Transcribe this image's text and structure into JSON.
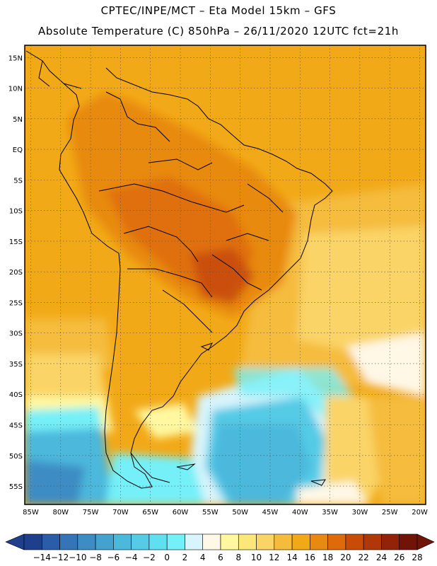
{
  "header": {
    "line1": "CPTEC/INPE/MCT –  Eta Model 15km – GFS",
    "line2": "Absolute Temperature (C) 850hPa – 26/11/2020 12UTC fct=21h"
  },
  "axes": {
    "lat_labels": [
      "15N",
      "10N",
      "5N",
      "EQ",
      "5S",
      "10S",
      "15S",
      "20S",
      "25S",
      "30S",
      "35S",
      "40S",
      "45S",
      "50S",
      "55S"
    ],
    "lat_values": [
      15,
      10,
      5,
      0,
      -5,
      -10,
      -15,
      -20,
      -25,
      -30,
      -35,
      -40,
      -45,
      -50,
      -55
    ],
    "lon_labels": [
      "85W",
      "80W",
      "75W",
      "70W",
      "65W",
      "60W",
      "55W",
      "50W",
      "45W",
      "40W",
      "35W",
      "30W",
      "25W",
      "20W"
    ],
    "lon_values": [
      -85,
      -80,
      -75,
      -70,
      -65,
      -60,
      -55,
      -50,
      -45,
      -40,
      -35,
      -30,
      -25,
      -20
    ],
    "lon_range": [
      -86,
      -19
    ],
    "lat_range": [
      -58,
      17
    ],
    "grid": true
  },
  "colorbar": {
    "labels": [
      "−14",
      "−12",
      "−10",
      "−8",
      "−6",
      "−4",
      "−2",
      "0",
      "2",
      "4",
      "6",
      "8",
      "10",
      "12",
      "14",
      "16",
      "18",
      "20",
      "22",
      "24",
      "26",
      "28"
    ],
    "colors": [
      "#1d3f8c",
      "#2a5ca8",
      "#3574b6",
      "#3e8cc4",
      "#45a2cf",
      "#4cb8dc",
      "#55cbe6",
      "#5ee0f0",
      "#74f0f8",
      "#d8f4fc",
      "#fff8e6",
      "#fff8a0",
      "#fde67a",
      "#fad466",
      "#f5bc3c",
      "#f2a918",
      "#e88a10",
      "#de6a0a",
      "#c84c08",
      "#b03808",
      "#922208",
      "#701408"
    ]
  }
}
